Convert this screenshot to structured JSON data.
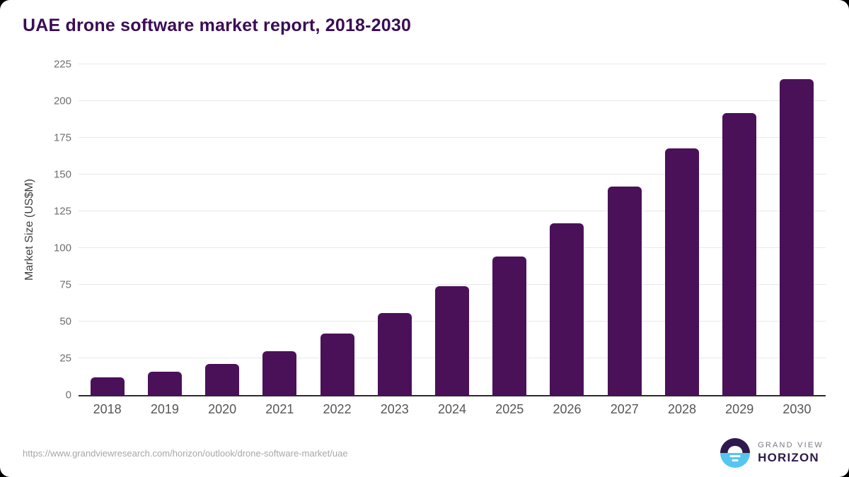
{
  "header": {
    "title": "UAE drone software market report, 2018-2030"
  },
  "chart_data": {
    "type": "bar",
    "title": "UAE drone software market report, 2018-2030",
    "categories": [
      "2018",
      "2019",
      "2020",
      "2021",
      "2022",
      "2023",
      "2024",
      "2025",
      "2026",
      "2027",
      "2028",
      "2029",
      "2030"
    ],
    "values": [
      12,
      16,
      21,
      30,
      42,
      56,
      74,
      94,
      117,
      142,
      168,
      192,
      215
    ],
    "xlabel": "",
    "ylabel": "Market Size (US$M)",
    "ylim": [
      0,
      225
    ],
    "yticks": [
      0,
      25,
      50,
      75,
      100,
      125,
      150,
      175,
      200,
      225
    ],
    "grid": true,
    "legend": "none",
    "bar_color": "#4a1159",
    "unit": "US$M"
  },
  "footer": {
    "source_url": "https://www.grandviewresearch.com/horizon/outlook/drone-software-market/uae",
    "logo": {
      "line1": "GRAND VIEW",
      "line2": "HORIZON"
    }
  },
  "colors": {
    "title": "#3a0d55",
    "bar": "#4a1159",
    "gridline": "#e8e8e8",
    "axis_line": "#2b2b2b",
    "tick_label": "#6e6e6e",
    "x_label": "#565656",
    "url_text": "#a7a7a7",
    "logo_dark": "#2e1a4d",
    "logo_blue": "#55c6f1",
    "logo_gray": "#7a7880"
  }
}
